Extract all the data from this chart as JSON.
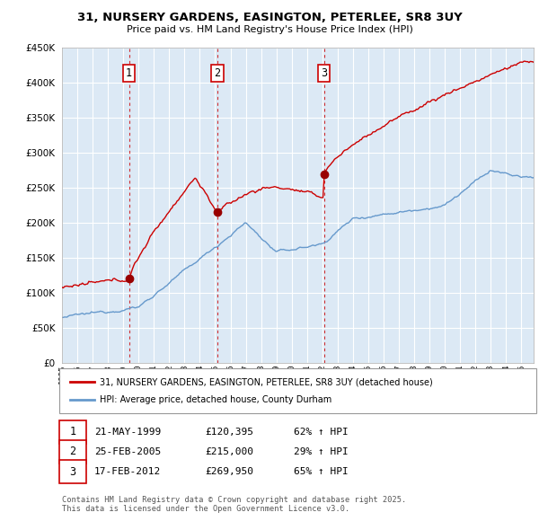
{
  "title": "31, NURSERY GARDENS, EASINGTON, PETERLEE, SR8 3UY",
  "subtitle": "Price paid vs. HM Land Registry's House Price Index (HPI)",
  "property_color": "#cc0000",
  "hpi_color": "#6699cc",
  "background_color": "#ffffff",
  "chart_bg_color": "#dce9f5",
  "grid_color": "#ffffff",
  "ylim": [
    0,
    450000
  ],
  "xlim_left": 1995.0,
  "xlim_right": 2025.8,
  "sales": [
    {
      "num": 1,
      "date": "21-MAY-1999",
      "price": 120395,
      "pct": "62%",
      "year": 1999.38
    },
    {
      "num": 2,
      "date": "25-FEB-2005",
      "price": 215000,
      "pct": "29%",
      "year": 2005.15
    },
    {
      "num": 3,
      "date": "17-FEB-2012",
      "price": 269950,
      "pct": "65%",
      "year": 2012.12
    }
  ],
  "legend_property": "31, NURSERY GARDENS, EASINGTON, PETERLEE, SR8 3UY (detached house)",
  "legend_hpi": "HPI: Average price, detached house, County Durham",
  "footer": "Contains HM Land Registry data © Crown copyright and database right 2025.\nThis data is licensed under the Open Government Licence v3.0.",
  "vline_color": "#cc0000"
}
